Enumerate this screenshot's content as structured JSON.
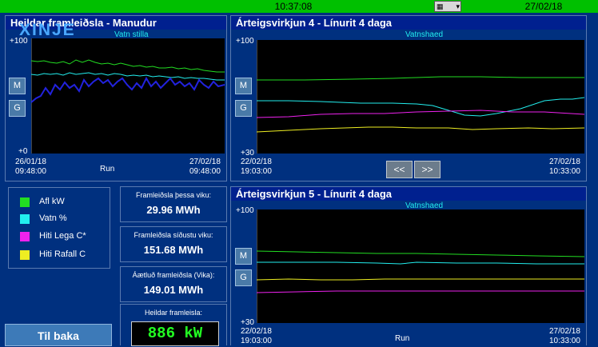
{
  "header": {
    "time": "10:37:08",
    "date": "27/02/18"
  },
  "watermark": "XINJE",
  "panel1": {
    "title": "Heildar framleiðsla - Manudur",
    "series_label": "Vatn stilla",
    "y_top": "+100",
    "y_bottom": "+0",
    "x_start_date": "26/01/18",
    "x_start_time": "09:48:00",
    "x_end_date": "27/02/18",
    "x_end_time": "09:48:00",
    "mode": "Run",
    "btn_m": "M",
    "btn_g": "G"
  },
  "panel2": {
    "title": "Árteigsvirkjun 4 - Línurit 4 daga",
    "series_label": "Vatnshaed",
    "y_top": "+100",
    "y_bottom": "+30",
    "x_start_date": "22/02/18",
    "x_start_time": "19:03:00",
    "x_end_date": "27/02/18",
    "x_end_time": "10:33:00",
    "nav_prev": "<<",
    "nav_next": ">>",
    "btn_m": "M",
    "btn_g": "G"
  },
  "panel3": {
    "title": "Árteigsvirkjun 5 - Línurit 4 daga",
    "series_label": "Vatnshaed",
    "y_top": "+100",
    "y_bottom": "+30",
    "x_start_date": "22/02/18",
    "x_start_time": "19:03:00",
    "x_end_date": "27/02/18",
    "x_end_time": "10:33:00",
    "mode": "Run",
    "btn_m": "M",
    "btn_g": "G"
  },
  "legend": [
    {
      "label": "Afl kW",
      "color": "#22dd22"
    },
    {
      "label": "Vatn %",
      "color": "#22eeee"
    },
    {
      "label": "Hiti Lega C*",
      "color": "#ee22ee"
    },
    {
      "label": "Hiti Rafall C",
      "color": "#eeee22"
    }
  ],
  "stats": {
    "week_label": "Framleiðsla þessa viku:",
    "week_value": "29.96 MWh",
    "last_week_label": "Framleiðsla síðustu viku:",
    "last_week_value": "151.68 MWh",
    "estimate_label": "Áætluð framleiðsla (Vika):",
    "estimate_value": "149.01 MWh",
    "total_label": "Heildar framleisla:",
    "total_value": "886 kW"
  },
  "back_button": "Til baka"
}
